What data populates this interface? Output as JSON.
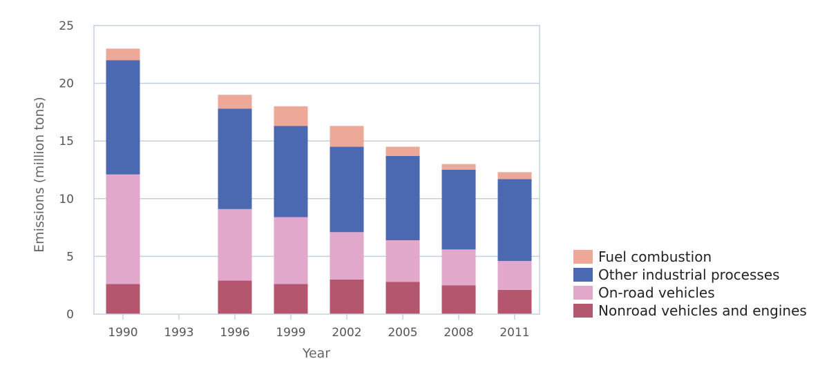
{
  "chart_data": {
    "type": "bar",
    "stacked": true,
    "xlabel": "Year",
    "ylabel": "Emissions (million tons)",
    "ylim": [
      0,
      25
    ],
    "yticks": [
      0,
      5,
      10,
      15,
      20,
      25
    ],
    "categories": [
      "1990",
      "1993",
      "1996",
      "1999",
      "2002",
      "2005",
      "2008",
      "2011"
    ],
    "grid": true,
    "legend_position": "right-bottom",
    "series": [
      {
        "name": "Nonroad vehicles and engines",
        "color": "#b5566f",
        "values": [
          2.6,
          0,
          2.9,
          2.6,
          3.0,
          2.8,
          2.5,
          2.1
        ]
      },
      {
        "name": "On-road vehicles",
        "color": "#e2a8cc",
        "values": [
          9.5,
          0,
          6.2,
          5.8,
          4.1,
          3.6,
          3.1,
          2.5
        ]
      },
      {
        "name": "Other industrial processes",
        "color": "#4b69b1",
        "values": [
          9.9,
          0,
          8.7,
          7.9,
          7.4,
          7.3,
          6.9,
          7.1
        ]
      },
      {
        "name": "Fuel combustion",
        "color": "#eea898",
        "values": [
          1.0,
          0,
          1.2,
          1.7,
          1.8,
          0.8,
          0.5,
          0.6
        ]
      }
    ],
    "legend_order": [
      "Fuel combustion",
      "Other industrial processes",
      "On-road vehicles",
      "Nonroad vehicles and engines"
    ]
  }
}
